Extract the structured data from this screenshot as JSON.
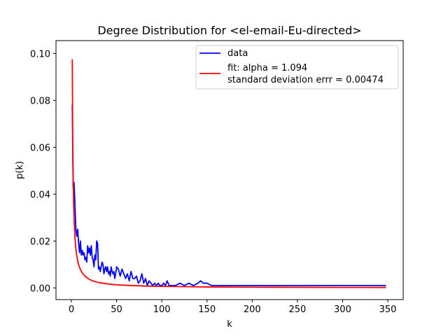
{
  "chart_data": {
    "type": "line",
    "title": "Degree  Distribution for <el-email-Eu-directed>",
    "xlabel": "k",
    "ylabel": "p(k)",
    "xlim": [
      -17,
      367
    ],
    "ylim": [
      -0.005,
      0.1055
    ],
    "xticks": [
      0,
      50,
      100,
      150,
      200,
      250,
      300,
      350
    ],
    "yticks": [
      0.0,
      0.02,
      0.04,
      0.06,
      0.08,
      0.1
    ],
    "ytick_labels": [
      "0.00",
      "0.02",
      "0.04",
      "0.06",
      "0.08",
      "0.10"
    ],
    "grid": false,
    "legend_position": "top-right",
    "series": [
      {
        "name": "data",
        "color": "#0000ff",
        "x": [
          1,
          2,
          3,
          4,
          5,
          6,
          7,
          8,
          9,
          10,
          11,
          12,
          13,
          14,
          15,
          16,
          17,
          18,
          19,
          20,
          21,
          22,
          23,
          24,
          25,
          26,
          27,
          28,
          29,
          30,
          31,
          32,
          33,
          34,
          35,
          36,
          37,
          38,
          39,
          40,
          41,
          42,
          43,
          44,
          45,
          46,
          47,
          48,
          49,
          50,
          52,
          54,
          56,
          58,
          60,
          62,
          64,
          66,
          68,
          70,
          72,
          74,
          76,
          78,
          80,
          82,
          84,
          86,
          88,
          90,
          92,
          94,
          96,
          98,
          100,
          102,
          104,
          106,
          108,
          110,
          115,
          120,
          125,
          130,
          135,
          140,
          143,
          146,
          150,
          155,
          160,
          200,
          250,
          300,
          348
        ],
        "y": [
          0.078,
          0.043,
          0.045,
          0.035,
          0.025,
          0.022,
          0.025,
          0.019,
          0.015,
          0.02,
          0.014,
          0.016,
          0.014,
          0.015,
          0.012,
          0.013,
          0.011,
          0.018,
          0.015,
          0.017,
          0.014,
          0.018,
          0.013,
          0.012,
          0.009,
          0.014,
          0.012,
          0.02,
          0.019,
          0.008,
          0.009,
          0.007,
          0.009,
          0.011,
          0.01,
          0.006,
          0.008,
          0.009,
          0.007,
          0.009,
          0.006,
          0.007,
          0.005,
          0.009,
          0.007,
          0.006,
          0.007,
          0.004,
          0.006,
          0.009,
          0.008,
          0.005,
          0.008,
          0.006,
          0.004,
          0.006,
          0.003,
          0.007,
          0.004,
          0.004,
          0.005,
          0.002,
          0.003,
          0.006,
          0.002,
          0.004,
          0.001,
          0.003,
          0.002,
          0.001,
          0.002,
          0.001,
          0.002,
          0.001,
          0.001,
          0.002,
          0.001,
          0.003,
          0.001,
          0.001,
          0.001,
          0.002,
          0.001,
          0.002,
          0.001,
          0.002,
          0.003,
          0.002,
          0.002,
          0.001,
          0.001,
          0.001,
          0.001,
          0.001,
          0.001
        ]
      },
      {
        "name": "fit: alpha = 1.094\nstandard deviation errr = 0.00474",
        "legend_lines": [
          "fit: alpha = 1.094",
          "standard deviation errr = 0.00474"
        ],
        "color": "#ff0000",
        "x": [
          1,
          1.5,
          2,
          2.5,
          3,
          4,
          5,
          6,
          7,
          8,
          10,
          12,
          15,
          20,
          25,
          30,
          40,
          50,
          60,
          80,
          100,
          150,
          200,
          250,
          300,
          348
        ],
        "y": [
          0.0975,
          0.0627,
          0.0456,
          0.0358,
          0.0293,
          0.0213,
          0.0167,
          0.0136,
          0.0115,
          0.0099,
          0.0078,
          0.0064,
          0.005,
          0.0036,
          0.0028,
          0.0023,
          0.0017,
          0.0013,
          0.0011,
          0.0008,
          0.00065,
          0.0004,
          0.0003,
          0.00024,
          0.0002,
          0.00017
        ]
      }
    ]
  }
}
